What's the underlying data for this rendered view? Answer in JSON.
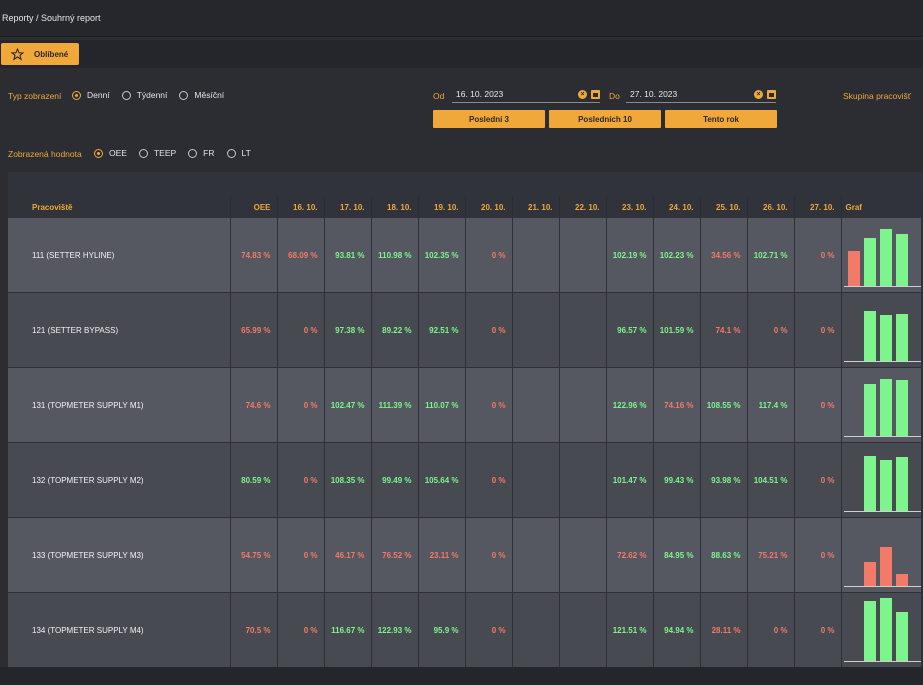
{
  "breadcrumb": "Reporty / Souhrný report",
  "favorites_label": "Oblíbené",
  "filters": {
    "view_type_label": "Typ zobrazení",
    "view_types": [
      {
        "label": "Denní",
        "checked": true
      },
      {
        "label": "Týdenní",
        "checked": false
      },
      {
        "label": "Měsíční",
        "checked": false
      }
    ],
    "value_label": "Zobrazená hodnota",
    "values": [
      {
        "label": "OEE",
        "checked": true
      },
      {
        "label": "TEEP",
        "checked": false
      },
      {
        "label": "FR",
        "checked": false
      },
      {
        "label": "LT",
        "checked": false
      }
    ],
    "from_label": "Od",
    "from_value": "16. 10. 2023",
    "to_label": "Do",
    "to_value": "27. 10. 2023",
    "quick_buttons": [
      "Poslední 3",
      "Posledních 10",
      "Tento rok"
    ],
    "workgroup_label": "Skupina pracovišť"
  },
  "colors": {
    "accent": "#f0a83a",
    "good": "#7ef58c",
    "bad": "#f27a66"
  },
  "table": {
    "headers": [
      "Pracoviště",
      "OEE",
      "16. 10.",
      "17. 10.",
      "18. 10.",
      "19. 10.",
      "20. 10.",
      "21. 10.",
      "22. 10.",
      "23. 10.",
      "24. 10.",
      "25. 10.",
      "26. 10.",
      "27. 10.",
      "Graf"
    ],
    "rows": [
      {
        "name": "111 (SETTER HYLINE)",
        "cells": [
          {
            "v": "74.83 %",
            "s": "r"
          },
          {
            "v": "68.09 %",
            "s": "r"
          },
          {
            "v": "93.81 %",
            "s": "g"
          },
          {
            "v": "110.98 %",
            "s": "g"
          },
          {
            "v": "102.35 %",
            "s": "g"
          },
          {
            "v": "0 %",
            "s": "r"
          },
          {
            "v": "",
            "s": "e"
          },
          {
            "v": "",
            "s": "e"
          },
          {
            "v": "102.19 %",
            "s": "g"
          },
          {
            "v": "102.23 %",
            "s": "g"
          },
          {
            "v": "34.56 %",
            "s": "r"
          },
          {
            "v": "102.71 %",
            "s": "g"
          },
          {
            "v": "0 %",
            "s": "r"
          }
        ],
        "graf": [
          {
            "v": 68.09,
            "s": "r"
          },
          {
            "v": 93.81,
            "s": "g"
          },
          {
            "v": 110.98,
            "s": "g"
          },
          {
            "v": 102.35,
            "s": "g"
          }
        ]
      },
      {
        "name": "121 (SETTER BYPASS)",
        "cells": [
          {
            "v": "65.99 %",
            "s": "r"
          },
          {
            "v": "0 %",
            "s": "r"
          },
          {
            "v": "97.38 %",
            "s": "g"
          },
          {
            "v": "89.22 %",
            "s": "g"
          },
          {
            "v": "92.51 %",
            "s": "g"
          },
          {
            "v": "0 %",
            "s": "r"
          },
          {
            "v": "",
            "s": "e"
          },
          {
            "v": "",
            "s": "e"
          },
          {
            "v": "96.57 %",
            "s": "g"
          },
          {
            "v": "101.59 %",
            "s": "g"
          },
          {
            "v": "74.1 %",
            "s": "r"
          },
          {
            "v": "0 %",
            "s": "r"
          },
          {
            "v": "0 %",
            "s": "r"
          }
        ],
        "graf": [
          {
            "v": 0,
            "s": "r"
          },
          {
            "v": 97.38,
            "s": "g"
          },
          {
            "v": 89.22,
            "s": "g"
          },
          {
            "v": 92.51,
            "s": "g"
          }
        ]
      },
      {
        "name": "131 (TOPMETER SUPPLY M1)",
        "cells": [
          {
            "v": "74.6 %",
            "s": "r"
          },
          {
            "v": "0 %",
            "s": "r"
          },
          {
            "v": "102.47 %",
            "s": "g"
          },
          {
            "v": "111.39 %",
            "s": "g"
          },
          {
            "v": "110.07 %",
            "s": "g"
          },
          {
            "v": "0 %",
            "s": "r"
          },
          {
            "v": "",
            "s": "e"
          },
          {
            "v": "",
            "s": "e"
          },
          {
            "v": "122.96 %",
            "s": "g"
          },
          {
            "v": "74.16 %",
            "s": "r"
          },
          {
            "v": "108.55 %",
            "s": "g"
          },
          {
            "v": "117.4 %",
            "s": "g"
          },
          {
            "v": "0 %",
            "s": "r"
          }
        ],
        "graf": [
          {
            "v": 0,
            "s": "r"
          },
          {
            "v": 102.47,
            "s": "g"
          },
          {
            "v": 111.39,
            "s": "g"
          },
          {
            "v": 110.07,
            "s": "g"
          }
        ]
      },
      {
        "name": "132 (TOPMETER SUPPLY M2)",
        "cells": [
          {
            "v": "80.59 %",
            "s": "g"
          },
          {
            "v": "0 %",
            "s": "r"
          },
          {
            "v": "108.35 %",
            "s": "g"
          },
          {
            "v": "99.49 %",
            "s": "g"
          },
          {
            "v": "105.64 %",
            "s": "g"
          },
          {
            "v": "0 %",
            "s": "r"
          },
          {
            "v": "",
            "s": "e"
          },
          {
            "v": "",
            "s": "e"
          },
          {
            "v": "101.47 %",
            "s": "g"
          },
          {
            "v": "99.43 %",
            "s": "g"
          },
          {
            "v": "93.98 %",
            "s": "g"
          },
          {
            "v": "104.51 %",
            "s": "g"
          },
          {
            "v": "0 %",
            "s": "r"
          }
        ],
        "graf": [
          {
            "v": 0,
            "s": "r"
          },
          {
            "v": 108.35,
            "s": "g"
          },
          {
            "v": 99.49,
            "s": "g"
          },
          {
            "v": 105.64,
            "s": "g"
          }
        ]
      },
      {
        "name": "133 (TOPMETER SUPPLY M3)",
        "cells": [
          {
            "v": "54.75 %",
            "s": "r"
          },
          {
            "v": "0 %",
            "s": "r"
          },
          {
            "v": "46.17 %",
            "s": "r"
          },
          {
            "v": "76.52 %",
            "s": "r"
          },
          {
            "v": "23.11 %",
            "s": "r"
          },
          {
            "v": "0 %",
            "s": "r"
          },
          {
            "v": "",
            "s": "e"
          },
          {
            "v": "",
            "s": "e"
          },
          {
            "v": "72.62 %",
            "s": "r"
          },
          {
            "v": "84.95 %",
            "s": "g"
          },
          {
            "v": "88.63 %",
            "s": "g"
          },
          {
            "v": "75.21 %",
            "s": "r"
          },
          {
            "v": "0 %",
            "s": "r"
          }
        ],
        "graf": [
          {
            "v": 0,
            "s": "r"
          },
          {
            "v": 46.17,
            "s": "r"
          },
          {
            "v": 76.52,
            "s": "r"
          },
          {
            "v": 23.11,
            "s": "r"
          }
        ]
      },
      {
        "name": "134 (TOPMETER SUPPLY M4)",
        "cells": [
          {
            "v": "70.5 %",
            "s": "r"
          },
          {
            "v": "0 %",
            "s": "r"
          },
          {
            "v": "116.67 %",
            "s": "g"
          },
          {
            "v": "122.93 %",
            "s": "g"
          },
          {
            "v": "95.9 %",
            "s": "g"
          },
          {
            "v": "0 %",
            "s": "r"
          },
          {
            "v": "",
            "s": "e"
          },
          {
            "v": "",
            "s": "e"
          },
          {
            "v": "121.51 %",
            "s": "g"
          },
          {
            "v": "94.94 %",
            "s": "g"
          },
          {
            "v": "28.11 %",
            "s": "r"
          },
          {
            "v": "0 %",
            "s": "r"
          },
          {
            "v": "0 %",
            "s": "r"
          }
        ],
        "graf": [
          {
            "v": 0,
            "s": "r"
          },
          {
            "v": 116.67,
            "s": "g"
          },
          {
            "v": 122.93,
            "s": "g"
          },
          {
            "v": 95.9,
            "s": "g"
          }
        ]
      }
    ]
  }
}
